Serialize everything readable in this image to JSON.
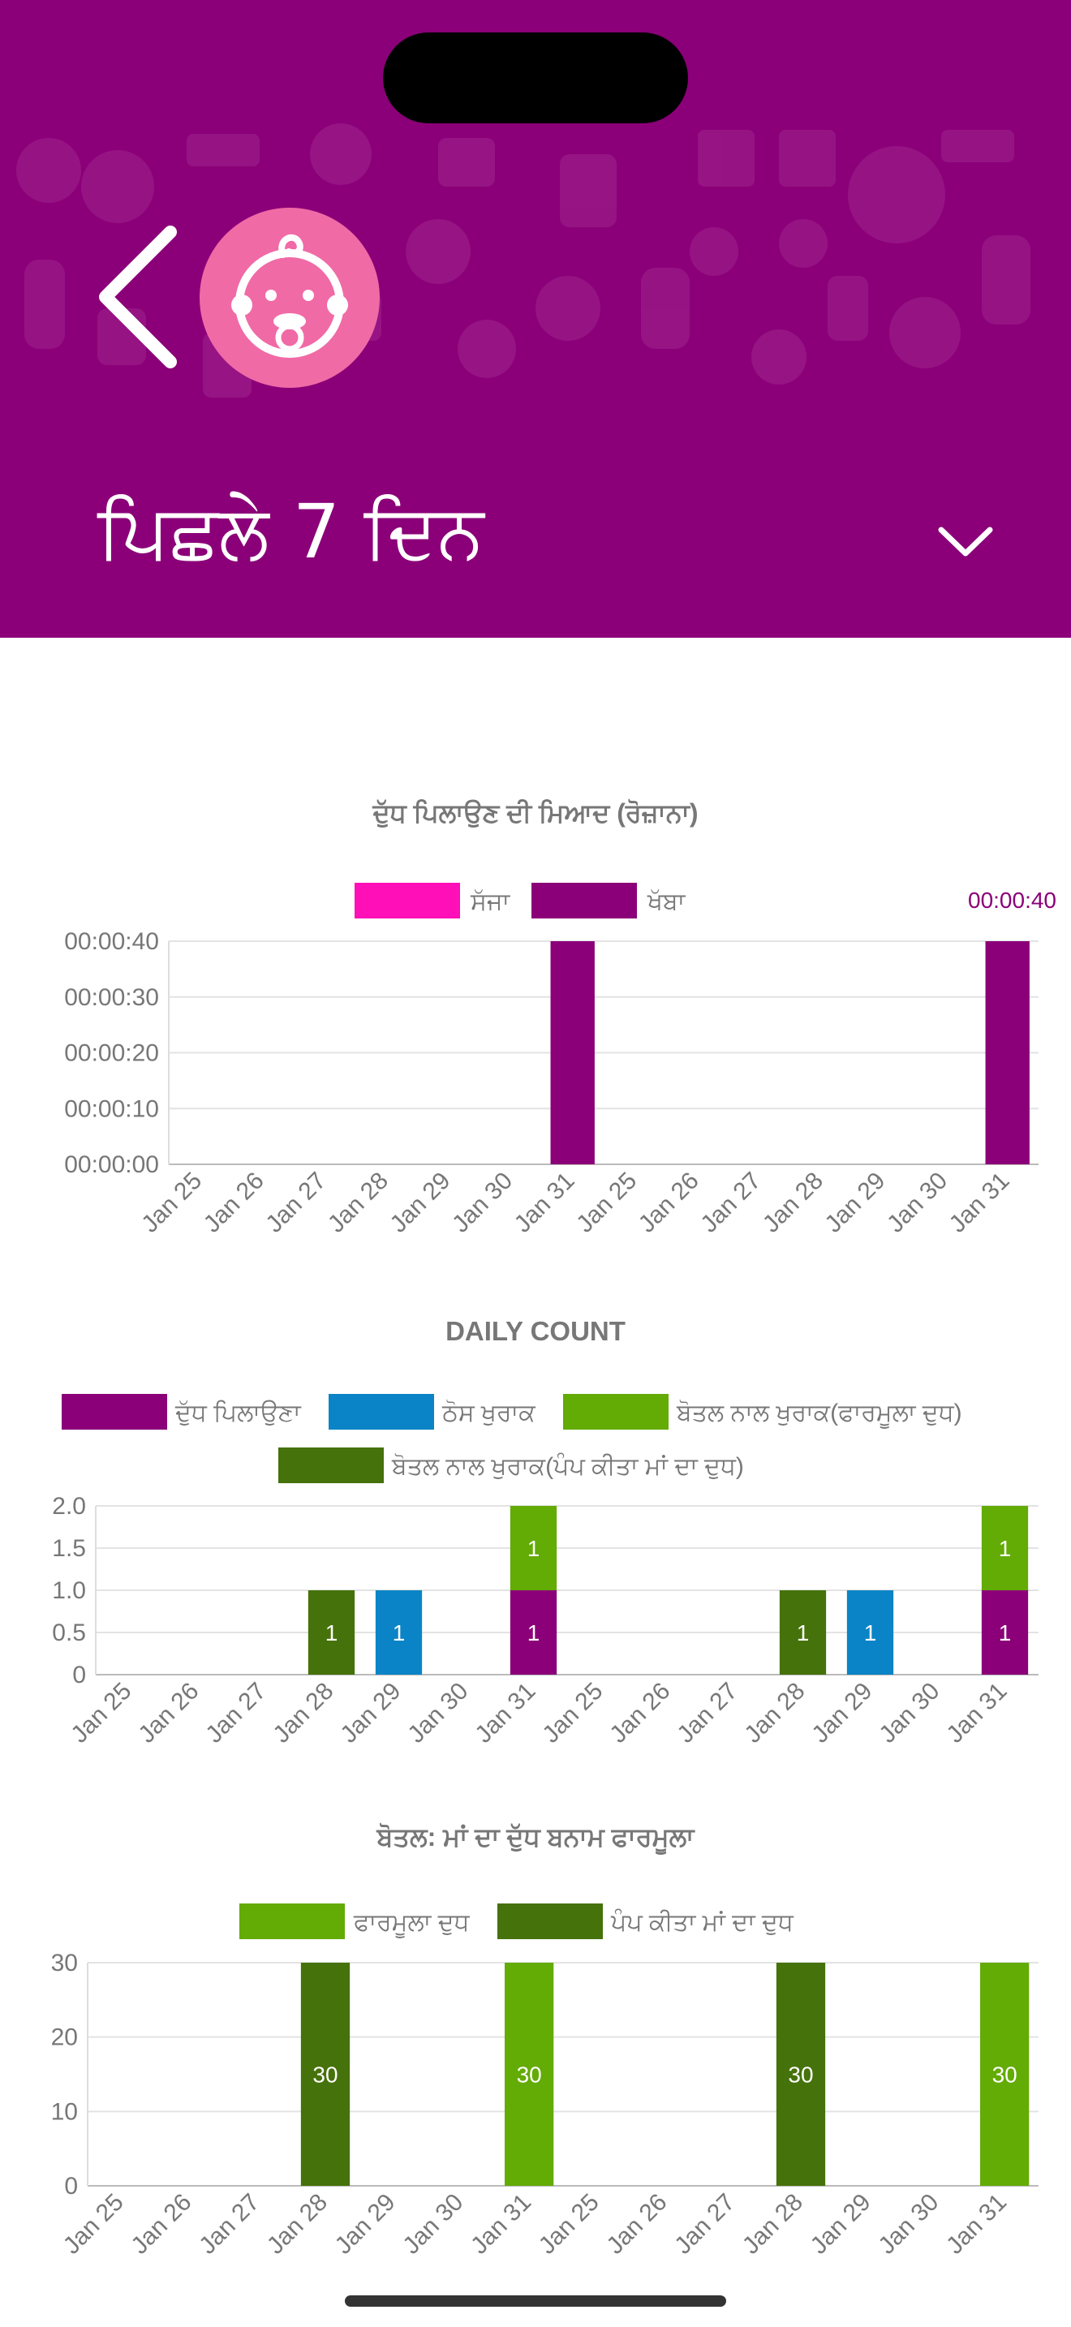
{
  "header": {
    "title": "ਪਿਛਲੇ 7 ਦਿਨ",
    "colors": {
      "background": "#8b0078",
      "avatar": "#f06aa6"
    },
    "icons": [
      "back-chevron-icon",
      "baby-face-icon",
      "chevron-down-icon"
    ]
  },
  "chart_data": [
    {
      "type": "bar",
      "title": "ਦੁੱਧ ਪਿਲਾਉਣ ਦੀ ਮਿਆਦ (ਰੋਜ਼ਾਨਾ)",
      "categories": [
        "Jan 25",
        "Jan 26",
        "Jan 27",
        "Jan 28",
        "Jan 29",
        "Jan 30",
        "Jan 31",
        "Jan 25",
        "Jan 26",
        "Jan 27",
        "Jan 28",
        "Jan 29",
        "Jan 30",
        "Jan 31"
      ],
      "series": [
        {
          "name": "ਸੱਜਾ",
          "color": "#ff0fb7",
          "values": [
            0,
            0,
            0,
            0,
            0,
            0,
            0,
            0,
            0,
            0,
            0,
            0,
            0,
            0
          ]
        },
        {
          "name": "ਖੱਬਾ",
          "color": "#8b0078",
          "values": [
            0,
            0,
            0,
            0,
            0,
            0,
            40,
            0,
            0,
            0,
            0,
            0,
            0,
            40
          ]
        }
      ],
      "yticks": [
        "00:00:00",
        "00:00:10",
        "00:00:20",
        "00:00:30",
        "00:00:40"
      ],
      "ylim": [
        0,
        40
      ],
      "annotation": "00:00:40",
      "grid": true,
      "legend": "top-center"
    },
    {
      "type": "bar",
      "title": "DAILY COUNT",
      "categories": [
        "Jan 25",
        "Jan 26",
        "Jan 27",
        "Jan 28",
        "Jan 29",
        "Jan 30",
        "Jan 31",
        "Jan 25",
        "Jan 26",
        "Jan 27",
        "Jan 28",
        "Jan 29",
        "Jan 30",
        "Jan 31"
      ],
      "series": [
        {
          "name": "ਦੁੱਧ ਪਿਲਾਉਣਾ",
          "color": "#8b0078",
          "values": [
            0,
            0,
            0,
            0,
            0,
            0,
            1,
            0,
            0,
            0,
            0,
            0,
            0,
            1
          ]
        },
        {
          "name": "ਠੋਸ ਖੁਰਾਕ",
          "color": "#0a84c6",
          "values": [
            0,
            0,
            0,
            0,
            1,
            0,
            0,
            0,
            0,
            0,
            0,
            1,
            0,
            0
          ]
        },
        {
          "name": "ਬੋਤਲ ਨਾਲ ਖੁਰਾਕ(ਫਾਰਮੂਲਾ ਦੁਧ)",
          "color": "#63ab05",
          "values": [
            0,
            0,
            0,
            0,
            0,
            0,
            1,
            0,
            0,
            0,
            0,
            0,
            0,
            1
          ]
        },
        {
          "name": "ਬੋਤਲ ਨਾਲ ਖੁਰਾਕ(ਪੰਪ ਕੀਤਾ ਮਾਂ ਦਾ ਦੁਧ)",
          "color": "#45720a",
          "values": [
            0,
            0,
            0,
            1,
            0,
            0,
            0,
            0,
            0,
            0,
            1,
            0,
            0,
            0
          ]
        }
      ],
      "yticks": [
        "0",
        "0.5",
        "1.0",
        "1.5",
        "2.0"
      ],
      "ylim": [
        0,
        2
      ],
      "stacked": true,
      "grid": true,
      "legend": "top-center"
    },
    {
      "type": "bar",
      "title": "ਬੋਤਲ: ਮਾਂ ਦਾ ਦੁੱਧ ਬਨਾਮ ਫਾਰਮੂਲਾ",
      "categories": [
        "Jan 25",
        "Jan 26",
        "Jan 27",
        "Jan 28",
        "Jan 29",
        "Jan 30",
        "Jan 31",
        "Jan 25",
        "Jan 26",
        "Jan 27",
        "Jan 28",
        "Jan 29",
        "Jan 30",
        "Jan 31"
      ],
      "series": [
        {
          "name": "ਫਾਰਮੂਲਾ ਦੁਧ",
          "color": "#63ab05",
          "values": [
            0,
            0,
            0,
            0,
            0,
            0,
            30,
            0,
            0,
            0,
            0,
            0,
            0,
            30
          ]
        },
        {
          "name": "ਪੰਪ ਕੀਤਾ ਮਾਂ ਦਾ ਦੁਧ",
          "color": "#45720a",
          "values": [
            0,
            0,
            0,
            30,
            0,
            0,
            0,
            0,
            0,
            0,
            30,
            0,
            0,
            0
          ]
        }
      ],
      "yticks": [
        "0",
        "10",
        "20",
        "30"
      ],
      "ylim": [
        0,
        30
      ],
      "stacked": true,
      "grid": true,
      "legend": "top-center"
    }
  ]
}
